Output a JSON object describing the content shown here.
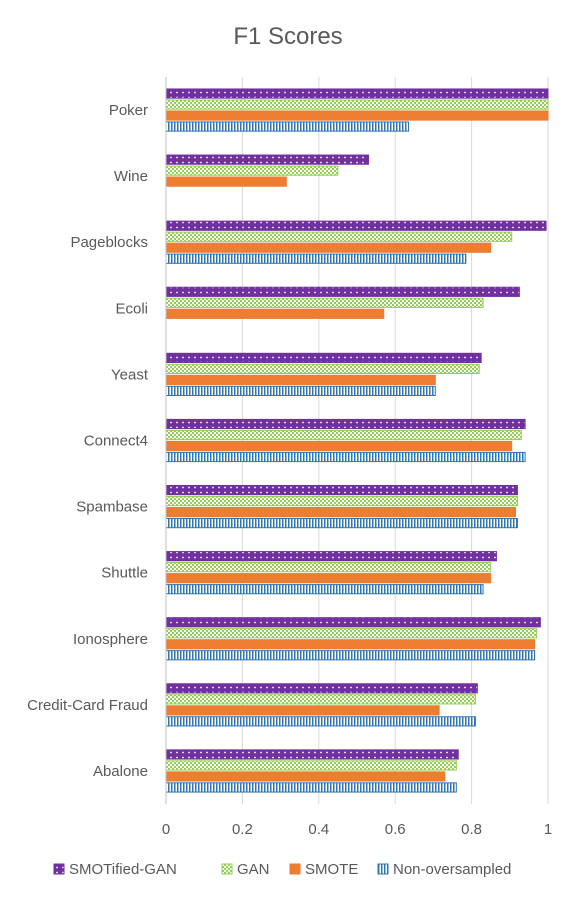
{
  "chart_data": {
    "type": "bar",
    "orientation": "horizontal",
    "title": "F1 Scores",
    "xlabel": "",
    "ylabel": "",
    "xlim": [
      0,
      1
    ],
    "x_ticks": [
      "0",
      "0.2",
      "0.4",
      "0.6",
      "0.8",
      "1"
    ],
    "grid": "vertical",
    "legend_position": "bottom",
    "categories": [
      "Poker",
      "Wine",
      "Pageblocks",
      "Ecoli",
      "Yeast",
      "Connect4",
      "Spambase",
      "Shuttle",
      "Ionosphere",
      "Credit-Card Fraud",
      "Abalone"
    ],
    "series": [
      {
        "name": "SMOTified-GAN",
        "color": "#7030a0",
        "pattern": "dots",
        "values": [
          1.0,
          0.53,
          0.995,
          0.925,
          0.825,
          0.94,
          0.92,
          0.865,
          0.98,
          0.815,
          0.765
        ]
      },
      {
        "name": "GAN",
        "color": "#92d050",
        "pattern": "checker",
        "values": [
          1.0,
          0.45,
          0.905,
          0.83,
          0.82,
          0.93,
          0.92,
          0.85,
          0.97,
          0.81,
          0.76
        ]
      },
      {
        "name": "SMOTE",
        "color": "#ed7d31",
        "pattern": "solid",
        "values": [
          1.0,
          0.315,
          0.85,
          0.57,
          0.705,
          0.905,
          0.915,
          0.85,
          0.965,
          0.715,
          0.73
        ]
      },
      {
        "name": "Non-oversampled",
        "color": "#2e75b6",
        "pattern": "vertical",
        "values": [
          0.635,
          null,
          0.785,
          null,
          0.705,
          0.94,
          0.92,
          0.83,
          0.965,
          0.81,
          0.76
        ]
      }
    ]
  }
}
